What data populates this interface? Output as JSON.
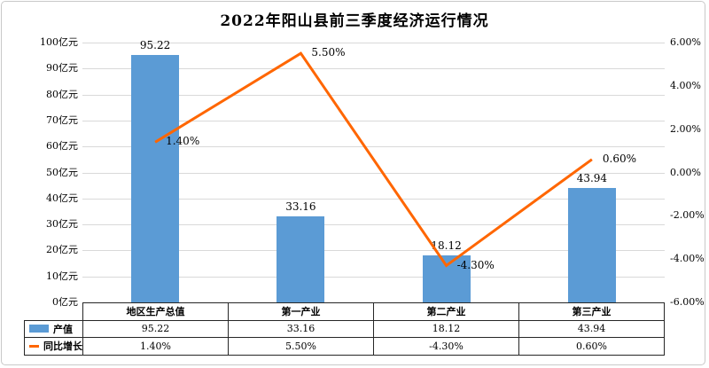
{
  "title": "2022年阳山县前三季度经济运行情况",
  "colors": {
    "bar": "#5B9BD5",
    "line": "#FF6600",
    "grid": "#d9d9d9",
    "table_border": "#262626",
    "frame_border": "#c9c9c9",
    "text": "#000000"
  },
  "chart_data": {
    "type": "combo-bar-line",
    "title": "2022年阳山县前三季度经济运行情况",
    "categories": [
      "地区生产总值",
      "第一产业",
      "第二产业",
      "第三产业"
    ],
    "series": [
      {
        "name": "产值",
        "type": "bar",
        "axis": "left",
        "color": "#5B9BD5",
        "values": [
          95.22,
          33.16,
          18.12,
          43.94
        ],
        "labels": [
          "95.22",
          "33.16",
          "18.12",
          "43.94"
        ]
      },
      {
        "name": "同比增长",
        "type": "line",
        "axis": "right",
        "color": "#FF6600",
        "values": [
          1.4,
          5.5,
          -4.3,
          0.6
        ],
        "labels": [
          "1.40%",
          "5.50%",
          "-4.30%",
          "0.60%"
        ]
      }
    ],
    "left_axis": {
      "unit": "亿元",
      "min": 0,
      "max": 100,
      "step": 10,
      "tick_labels": [
        "100亿元",
        "90亿元",
        "80亿元",
        "70亿元",
        "60亿元",
        "50亿元",
        "40亿元",
        "30亿元",
        "20亿元",
        "10亿元",
        "0亿元"
      ]
    },
    "right_axis": {
      "unit": "%",
      "min": -6,
      "max": 6,
      "step": 2,
      "tick_labels": [
        "6.00%",
        "4.00%",
        "2.00%",
        "0.00%",
        "-2.00%",
        "-4.00%",
        "-6.00%"
      ]
    },
    "grid": true,
    "legend_position": "data-table-left",
    "data_table_shown": true
  }
}
